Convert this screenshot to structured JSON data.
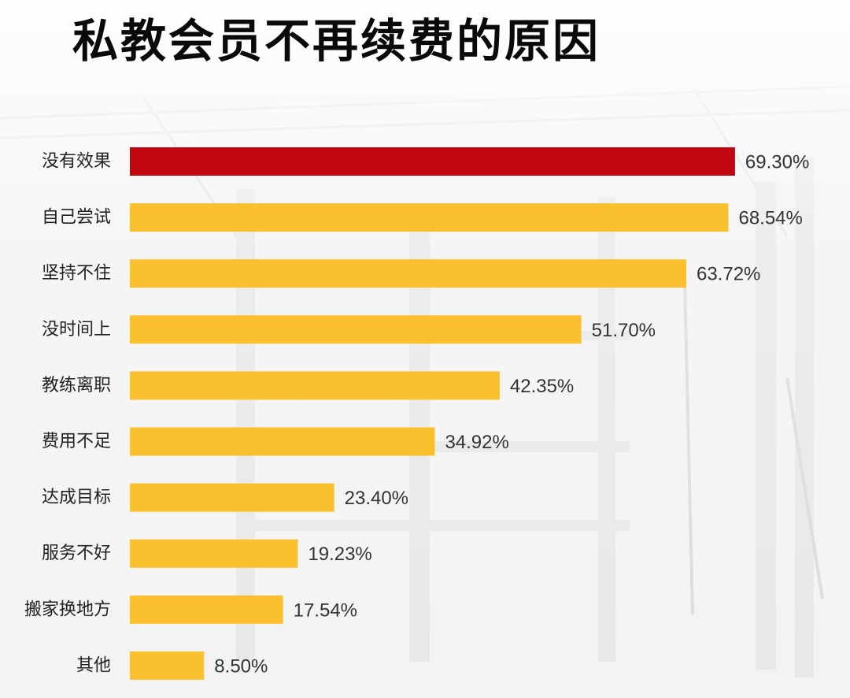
{
  "colors": {
    "highlight": "#C0060F",
    "bar": "#FBC02D",
    "title": "#0A0A0A",
    "background": "#F4F4F4"
  },
  "chart_data": {
    "type": "bar",
    "orientation": "horizontal",
    "title": "私教会员不再续费的原因",
    "xlabel": "",
    "ylabel": "",
    "xlim": [
      0,
      70.3
    ],
    "grid": false,
    "legend": "none",
    "categories": [
      "没有效果",
      "自己尝试",
      "坚持不住",
      "没时间上",
      "教练离职",
      "费用不足",
      "达成目标",
      "服务不好",
      "搬家换地方",
      "其他"
    ],
    "values": [
      69.3,
      68.54,
      63.72,
      51.7,
      42.35,
      34.92,
      23.4,
      19.23,
      17.54,
      8.5
    ],
    "value_labels": [
      "69.30%",
      "68.54%",
      "63.72%",
      "51.70%",
      "42.35%",
      "34.92%",
      "23.40%",
      "19.23%",
      "17.54%",
      "8.50%"
    ],
    "highlight_index": 0
  }
}
